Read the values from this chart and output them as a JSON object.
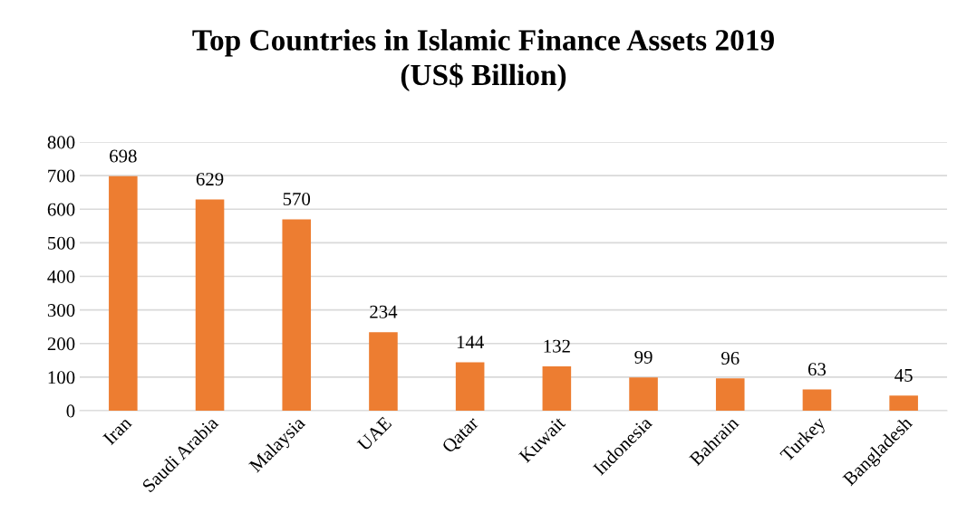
{
  "chart_data": {
    "type": "bar",
    "title": "Top Countries in Islamic Finance Assets 2019\n(US$ Billion)",
    "categories": [
      "Iran",
      "Saudi Arabia",
      "Malaysia",
      "UAE",
      "Qatar",
      "Kuwait",
      "Indonesia",
      "Bahrain",
      "Turkey",
      "Bangladesh"
    ],
    "values": [
      698,
      629,
      570,
      234,
      144,
      132,
      99,
      96,
      63,
      45
    ],
    "color": "#ed7d31",
    "ylim": [
      0,
      800
    ],
    "yticks": [
      0,
      100,
      200,
      300,
      400,
      500,
      600,
      700,
      800
    ],
    "grid": "y",
    "data_labels": true
  }
}
